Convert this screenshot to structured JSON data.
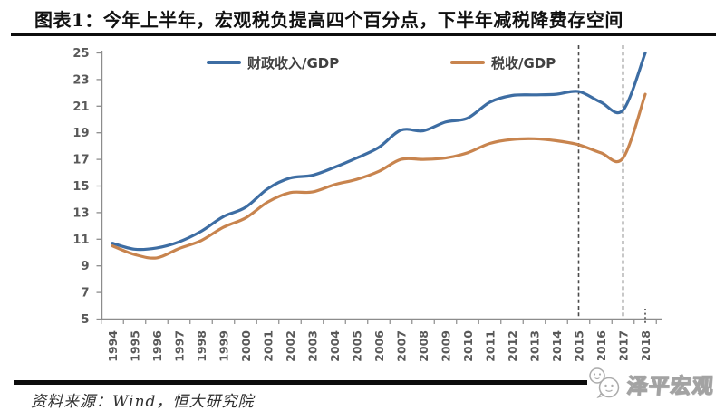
{
  "header": {
    "title": "图表1：今年上半年，宏观税负提高四个百分点，下半年减税降费存空间"
  },
  "footer": {
    "source": "资料来源：Wind，恒大研究院",
    "watermark": "泽平宏观",
    "watermark_icon": "chat-bubble-mascot-icon"
  },
  "chart_data": {
    "type": "line",
    "title": "",
    "xlabel": "",
    "ylabel": "",
    "categories": [
      "1994",
      "1995",
      "1996",
      "1997",
      "1998",
      "1999",
      "2000",
      "2001",
      "2002",
      "2003",
      "2004",
      "2005",
      "2006",
      "2007",
      "2008",
      "2009",
      "2010",
      "2011",
      "2012",
      "2013",
      "2014",
      "2015",
      "2016",
      "2017",
      "2018"
    ],
    "series": [
      {
        "name": "财政收入/GDP",
        "color": "#3d6da3",
        "values": [
          10.7,
          10.25,
          10.35,
          10.8,
          11.6,
          12.7,
          13.4,
          14.8,
          15.6,
          15.8,
          16.4,
          17.1,
          17.9,
          19.2,
          19.15,
          19.8,
          20.1,
          21.3,
          21.8,
          21.85,
          21.9,
          22.1,
          21.3,
          20.7,
          25.0
        ]
      },
      {
        "name": "税收/GDP",
        "color": "#c8844e",
        "values": [
          10.5,
          9.85,
          9.6,
          10.3,
          10.9,
          11.9,
          12.6,
          13.8,
          14.5,
          14.55,
          15.1,
          15.5,
          16.1,
          17.0,
          17.0,
          17.1,
          17.5,
          18.2,
          18.5,
          18.55,
          18.4,
          18.1,
          17.5,
          17.1,
          21.9
        ]
      }
    ],
    "ylim": [
      5,
      25
    ],
    "yticks": [
      5,
      7,
      9,
      11,
      13,
      15,
      17,
      19,
      21,
      23,
      25
    ],
    "grid": false,
    "legend_position": "top",
    "line_smoothing": true,
    "annotations": {
      "dashed_vlines_at": [
        "2015",
        "2017"
      ],
      "dotted_axis_mark_at": "2018"
    },
    "axis_color": "#8c8c8c",
    "tick_label_color": "#595959",
    "dashed_line_color": "#4a4a4a"
  }
}
